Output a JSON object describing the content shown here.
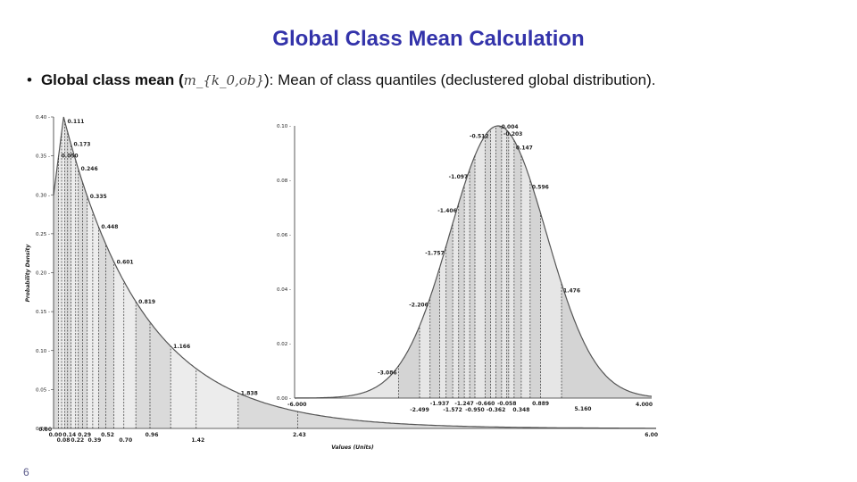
{
  "slide": {
    "title": "Global Class Mean Calculation",
    "bullet_lead": "Global class mean (",
    "bullet_symbol": "m_{k_0,ob}",
    "bullet_rest": "): Mean of class quantiles (declustered global distribution).",
    "page_number": "6"
  },
  "chart_data": [
    {
      "type": "area",
      "title": "",
      "xlabel": "Values (Units)",
      "ylabel": "Probability Density",
      "xlim": [
        0,
        6
      ],
      "ylim": [
        0,
        0.4
      ],
      "y_ticks": [
        "0.40",
        "0.35",
        "0.30",
        "0.25",
        "0.20",
        "0.15",
        "0.10",
        "0.05",
        "0.00"
      ],
      "x_start_label": "0.00",
      "x_end_label": "6.00",
      "x_end_value": 6.0,
      "quantile_labels_top": [
        {
          "label": "0.111",
          "x": 0.111
        },
        {
          "label": "0.050",
          "x": 0.05
        },
        {
          "label": "0.173",
          "x": 0.173
        },
        {
          "label": "0.246",
          "x": 0.246
        },
        {
          "label": "0.335",
          "x": 0.335
        },
        {
          "label": "0.448",
          "x": 0.448
        },
        {
          "label": "0.601",
          "x": 0.601
        },
        {
          "label": "0.819",
          "x": 0.819
        },
        {
          "label": "1.166",
          "x": 1.166
        },
        {
          "label": "1.838",
          "x": 1.838
        },
        {
          "label": "5.160",
          "x": 5.16
        }
      ],
      "quantile_labels_bottom": [
        {
          "label": "0.00",
          "x": 0.0
        },
        {
          "label": "0.14",
          "x": 0.14
        },
        {
          "label": "0.29",
          "x": 0.29
        },
        {
          "label": "0.52",
          "x": 0.52
        },
        {
          "label": "0.96",
          "x": 0.96
        },
        {
          "label": "2.43",
          "x": 2.43
        },
        {
          "label": "0.08",
          "x": 0.08
        },
        {
          "label": "0.22",
          "x": 0.22
        },
        {
          "label": "0.39",
          "x": 0.39
        },
        {
          "label": "0.70",
          "x": 0.7
        },
        {
          "label": "1.42",
          "x": 1.42
        }
      ]
    },
    {
      "type": "area",
      "title": "",
      "xlabel": "",
      "ylabel": "",
      "xlim": [
        -6,
        4
      ],
      "ylim": [
        0,
        0.1
      ],
      "y_ticks": [
        "0.10",
        "0.08",
        "0.06",
        "0.04",
        "0.02",
        "0.00"
      ],
      "x_start_label": "-6.000",
      "x_end_label": "4.000",
      "quantile_labels_top": [
        {
          "label": "-0.004",
          "x": -0.004
        },
        {
          "label": "-1.097",
          "x": -1.097
        },
        {
          "label": "-0.512",
          "x": -0.512
        },
        {
          "label": "-1.406",
          "x": -1.406
        },
        {
          "label": "-0.203",
          "x": -0.203
        },
        {
          "label": "-1.757",
          "x": -1.757
        },
        {
          "label": "0.147",
          "x": 0.147
        },
        {
          "label": "-2.206",
          "x": -2.206
        },
        {
          "label": "0.596",
          "x": 0.596
        },
        {
          "label": "-3.086",
          "x": -3.086
        },
        {
          "label": "1.476",
          "x": 1.476
        }
      ],
      "quantile_labels_bottom": [
        {
          "label": "-1.937",
          "x": -1.937
        },
        {
          "label": "-1.247",
          "x": -1.247
        },
        {
          "label": "-0.660",
          "x": -0.66
        },
        {
          "label": "-0.058",
          "x": -0.058
        },
        {
          "label": "0.889",
          "x": 0.889
        },
        {
          "label": "-2.499",
          "x": -2.499
        },
        {
          "label": "-1.572",
          "x": -1.572
        },
        {
          "label": "-0.950",
          "x": -0.95
        },
        {
          "label": "-0.362",
          "x": -0.362
        },
        {
          "label": "0.348",
          "x": 0.348
        }
      ]
    }
  ]
}
